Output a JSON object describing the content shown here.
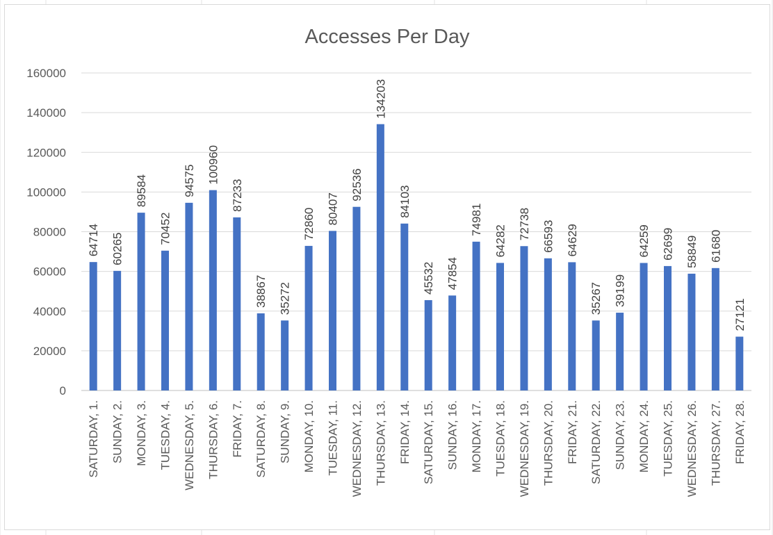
{
  "chart_data": {
    "type": "bar",
    "title": "Accesses Per Day",
    "xlabel": "",
    "ylabel": "",
    "ylim": [
      0,
      160000
    ],
    "yticks": [
      0,
      20000,
      40000,
      60000,
      80000,
      100000,
      120000,
      140000,
      160000
    ],
    "grid": true,
    "legend": "none",
    "bar_color": "#4472C4",
    "categories": [
      "SATURDAY, 1.",
      "SUNDAY, 2.",
      "MONDAY, 3.",
      "TUESDAY, 4.",
      "WEDNESDAY, 5.",
      "THURSDAY, 6.",
      "FRIDAY, 7.",
      "SATURDAY, 8.",
      "SUNDAY, 9.",
      "MONDAY, 10.",
      "TUESDAY, 11.",
      "WEDNESDAY, 12.",
      "THURSDAY, 13.",
      "FRIDAY, 14.",
      "SATURDAY, 15.",
      "SUNDAY, 16.",
      "MONDAY, 17.",
      "TUESDAY, 18.",
      "WEDNESDAY, 19.",
      "THURSDAY, 20.",
      "FRIDAY, 21.",
      "SATURDAY, 22.",
      "SUNDAY, 23.",
      "MONDAY, 24.",
      "TUESDAY, 25.",
      "WEDNESDAY, 26.",
      "THURSDAY, 27.",
      "FRIDAY, 28."
    ],
    "values": [
      64714,
      60265,
      89584,
      70452,
      94575,
      100960,
      87233,
      38867,
      35272,
      72860,
      80407,
      92536,
      134203,
      84103,
      45532,
      47854,
      74981,
      64282,
      72738,
      66593,
      64629,
      35267,
      39199,
      64259,
      62699,
      58849,
      61680,
      27121
    ]
  }
}
